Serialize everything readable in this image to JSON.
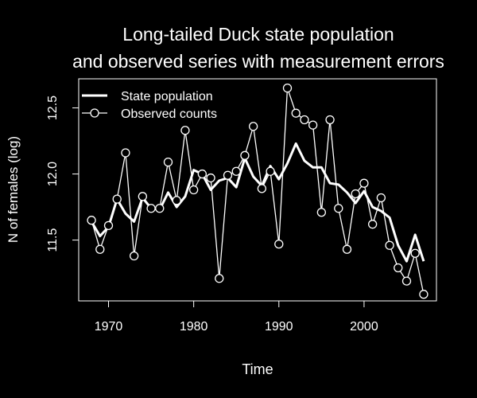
{
  "chart_data": {
    "type": "line",
    "title_lines": [
      "Long-tailed Duck state  population",
      "and observed series with measurement errors"
    ],
    "xlabel": "Time",
    "ylabel": "N of females (log)",
    "xlim": [
      1966.5,
      2008.5
    ],
    "ylim": [
      11.04,
      12.72
    ],
    "x_ticks": [
      1970,
      1980,
      1990,
      2000
    ],
    "y_ticks": [
      11.5,
      12.0,
      12.5
    ],
    "y_tick_labels": [
      "11.5",
      "12.0",
      "12.5"
    ],
    "grid": false,
    "legend_position": "top-left",
    "colors": {
      "background": "#000000",
      "foreground": "#ffffff"
    },
    "x": [
      1968,
      1969,
      1970,
      1971,
      1972,
      1973,
      1974,
      1975,
      1976,
      1977,
      1978,
      1979,
      1980,
      1981,
      1982,
      1983,
      1984,
      1985,
      1986,
      1987,
      1988,
      1989,
      1990,
      1991,
      1992,
      1993,
      1994,
      1995,
      1996,
      1997,
      1998,
      1999,
      2000,
      2001,
      2002,
      2003,
      2004,
      2005,
      2006,
      2007
    ],
    "series": [
      {
        "name": "State population",
        "style": "thick-line",
        "values": [
          11.64,
          11.53,
          11.6,
          11.81,
          11.7,
          11.64,
          11.82,
          11.74,
          11.73,
          11.86,
          11.75,
          11.83,
          12.03,
          12.0,
          11.88,
          11.95,
          11.97,
          11.9,
          12.12,
          11.98,
          11.91,
          12.06,
          11.96,
          12.08,
          12.23,
          12.1,
          12.05,
          12.05,
          11.93,
          11.92,
          11.86,
          11.78,
          11.87,
          11.75,
          11.72,
          11.67,
          11.46,
          11.34,
          11.54,
          11.34
        ]
      },
      {
        "name": "Observed counts",
        "style": "line-with-circles",
        "values": [
          11.65,
          11.43,
          11.61,
          11.81,
          12.16,
          11.38,
          11.83,
          11.74,
          11.74,
          12.09,
          11.8,
          12.33,
          11.88,
          12.0,
          11.97,
          11.21,
          11.99,
          12.02,
          12.14,
          12.36,
          11.89,
          12.02,
          11.47,
          12.65,
          12.46,
          12.41,
          12.37,
          11.71,
          12.41,
          11.74,
          11.43,
          11.85,
          11.93,
          11.62,
          11.82,
          11.46,
          11.29,
          11.19,
          11.4,
          11.09
        ]
      }
    ]
  }
}
